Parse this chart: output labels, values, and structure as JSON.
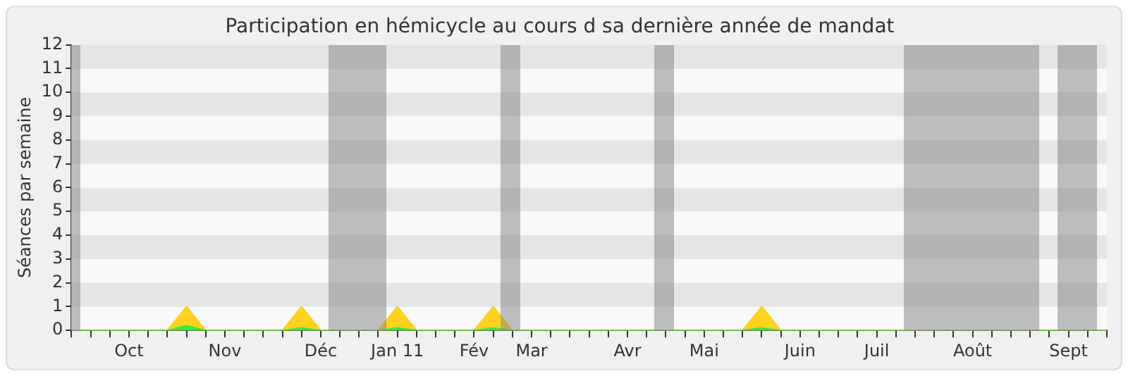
{
  "chart_data": {
    "type": "area",
    "title": "Participation en hémicycle au cours d sa dernière année de mandat",
    "ylabel": "Séances par semaine",
    "categories": [
      null,
      null,
      null,
      "Oct",
      null,
      null,
      null,
      null,
      "Nov",
      null,
      null,
      null,
      null,
      "Déc",
      null,
      null,
      null,
      "Jan 11",
      null,
      null,
      null,
      "Fév",
      null,
      null,
      "Mar",
      null,
      null,
      null,
      null,
      "Avr",
      null,
      null,
      null,
      "Mai",
      null,
      null,
      null,
      null,
      "Juin",
      null,
      null,
      null,
      "Juil",
      null,
      null,
      null,
      null,
      "Août",
      null,
      null,
      null,
      null,
      "Sept",
      null,
      null
    ],
    "series": [
      {
        "color": "#ffd21f",
        "values": [
          0,
          0,
          0,
          0,
          0,
          0,
          1,
          0,
          0,
          0,
          0,
          0,
          1,
          0,
          0,
          0,
          0,
          1,
          0,
          0,
          0,
          0,
          1,
          0,
          0,
          0,
          0,
          0,
          0,
          0,
          0,
          0,
          0,
          0,
          0,
          0,
          1,
          0,
          0,
          0,
          0,
          0,
          0,
          0,
          0,
          0,
          0,
          0,
          0,
          0,
          0,
          0,
          0,
          0,
          0
        ]
      },
      {
        "color": "#33ee33",
        "values": [
          0,
          0,
          0,
          0,
          0,
          0,
          0.2,
          0,
          0,
          0,
          0,
          0,
          0.1,
          0,
          0,
          0,
          0,
          0.1,
          0,
          0,
          0,
          0,
          0.1,
          0,
          0,
          0,
          0,
          0,
          0,
          0,
          0,
          0,
          0,
          0,
          0,
          0,
          0.1,
          0,
          0,
          0,
          0,
          0,
          0,
          0,
          0,
          0,
          0,
          0,
          0,
          0,
          0,
          0,
          0,
          0,
          0
        ]
      }
    ],
    "ylim": [
      0,
      12
    ],
    "yticks": [
      0,
      1,
      2,
      3,
      4,
      5,
      6,
      7,
      8,
      9,
      10,
      11,
      12
    ],
    "legend": false
  }
}
